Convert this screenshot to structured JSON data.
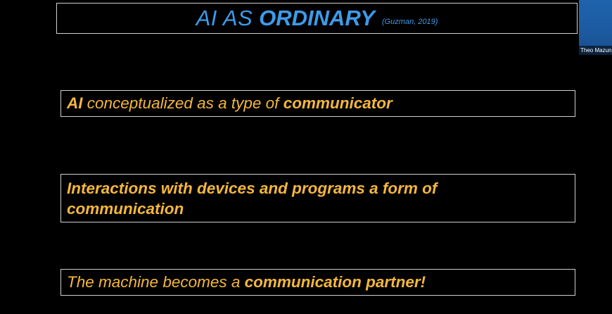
{
  "slide": {
    "title": {
      "light": "AI AS",
      "bold": "ORDINARY",
      "citation": "(Guzman, 2019)"
    },
    "point1": {
      "part1": "AI",
      "part2": " conceptualized as a type of ",
      "part3": "communicator"
    },
    "point2": {
      "line1": "Interactions with devices and programs a form of",
      "line2": "communication"
    },
    "point3": {
      "part1": "The machine becomes a ",
      "part2": "communication partner!"
    }
  },
  "participant": {
    "name": "Theo Mazun"
  },
  "colors": {
    "background": "#000000",
    "title": "#3d9be9",
    "text": "#f5b73c",
    "border": "#cfcfcf",
    "video_tile": "#1f63ad"
  }
}
